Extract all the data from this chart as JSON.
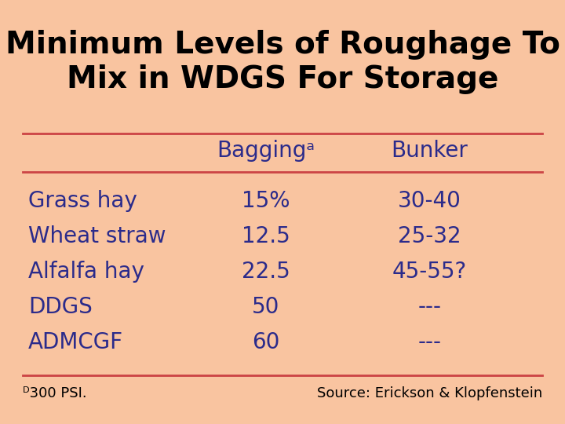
{
  "title_line1": "Minimum Levels of Roughage To",
  "title_line2": "Mix in WDGS For Storage",
  "title_fontsize": 28,
  "bg_color": "#F9C4A0",
  "text_color": "#2B2B8B",
  "line_color": "#CC4444",
  "col_headers": [
    "Baggingᵃ",
    "Bunker"
  ],
  "col_header_fontsize": 20,
  "rows": [
    [
      "Grass hay",
      "15%",
      "30-40"
    ],
    [
      "Wheat straw",
      "12.5",
      "25-32"
    ],
    [
      "Alfalfa hay",
      "22.5",
      "45-55?"
    ],
    [
      "DDGS",
      "50",
      "---"
    ],
    [
      "ADMCGF",
      "60",
      "---"
    ]
  ],
  "row_fontsize": 20,
  "footnote": "ᴰ300 PSI.",
  "source": "Source: Erickson & Klopfenstein",
  "footnote_fontsize": 13
}
